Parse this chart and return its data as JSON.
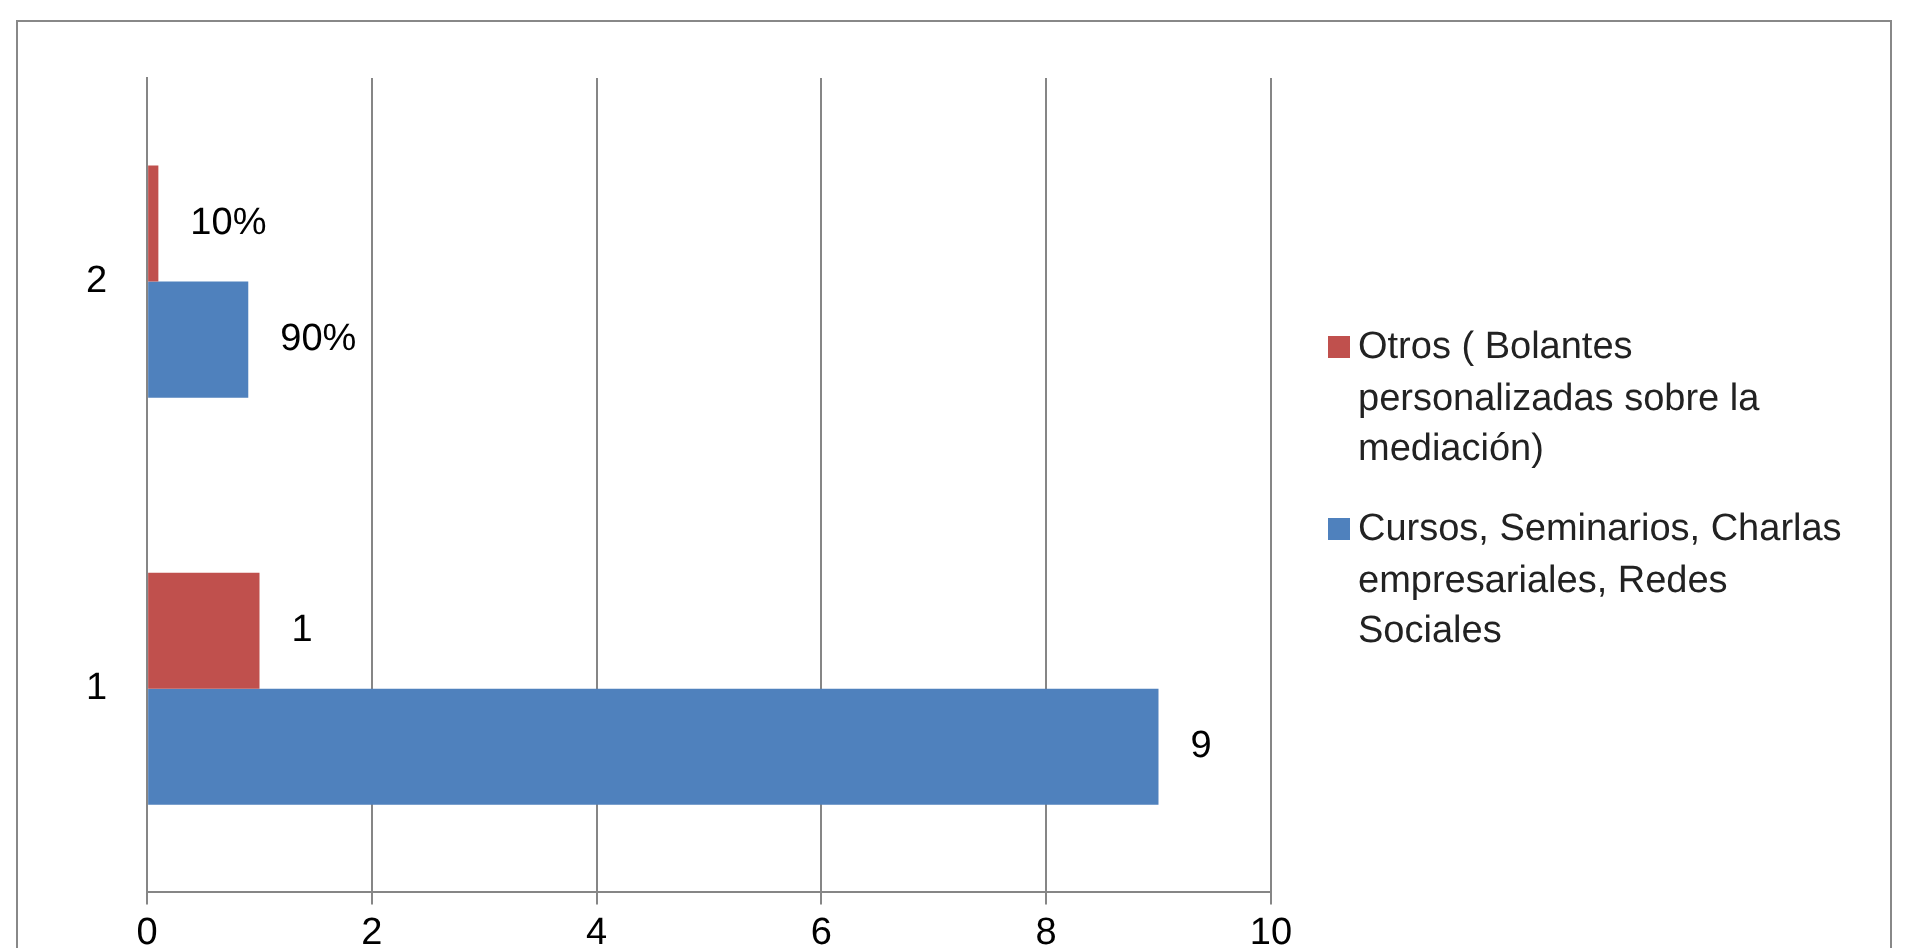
{
  "chart_data": {
    "type": "bar",
    "orientation": "horizontal",
    "categories": [
      "2",
      "1"
    ],
    "series": [
      {
        "name": "Otros ( Bolantes personalizadas sobre la mediación)",
        "color": "#c0504d",
        "values": [
          0.1,
          1
        ],
        "value_labels": [
          "10%",
          "1"
        ]
      },
      {
        "name": "Cursos, Seminarios, Charlas empresariales, Redes Sociales",
        "color": "#4f81bd",
        "values": [
          0.9,
          9
        ],
        "value_labels": [
          "90%",
          "9"
        ]
      }
    ],
    "xlim": [
      0,
      10
    ],
    "xticks": [
      0,
      2,
      4,
      6,
      8,
      10
    ],
    "grid": "x",
    "legend": "right"
  }
}
